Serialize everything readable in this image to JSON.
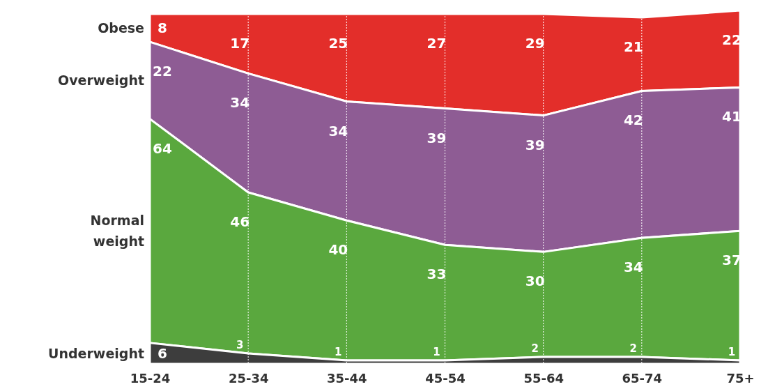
{
  "chart_data": {
    "type": "area",
    "stacked": true,
    "categories": [
      "15-24",
      "25-34",
      "35-44",
      "45-54",
      "55-64",
      "65-74",
      "75+"
    ],
    "ylim": [
      0,
      101
    ],
    "tick_labels": "x",
    "grid": "x",
    "legend": "left",
    "data_labels": true,
    "series": [
      {
        "name": "Underweight",
        "color": "#3d3d3d",
        "values": [
          6,
          3,
          1,
          1,
          2,
          2,
          1
        ]
      },
      {
        "name": "Normal weight",
        "color": "#5aa83e",
        "values": [
          64,
          46,
          40,
          33,
          30,
          34,
          37
        ]
      },
      {
        "name": "Overweight",
        "color": "#8e5c94",
        "values": [
          22,
          34,
          34,
          39,
          39,
          42,
          41
        ]
      },
      {
        "name": "Obese",
        "color": "#e32e2a",
        "values": [
          8,
          17,
          25,
          27,
          29,
          21,
          22
        ]
      }
    ]
  }
}
